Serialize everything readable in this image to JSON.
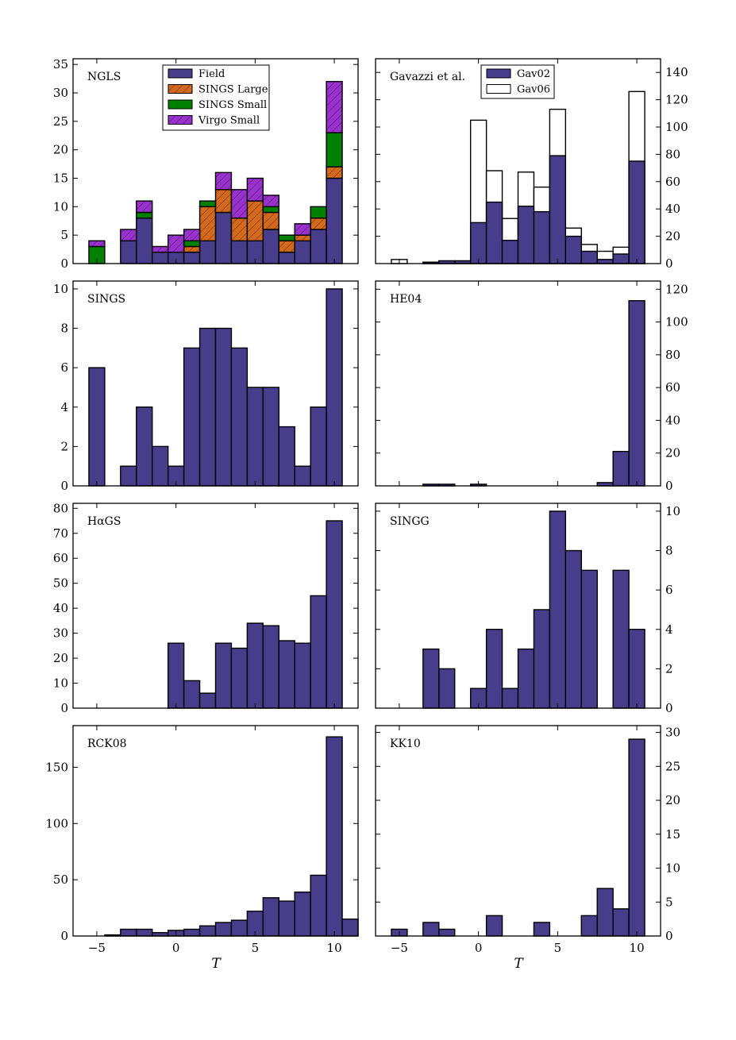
{
  "colors": {
    "field": "#483d8b",
    "sings_large": "#d2691e",
    "sings_small": "#008000",
    "virgo_small": "#9932cc",
    "gav06": "#ffffff",
    "edge": "#000000"
  },
  "x_axis_title": "T",
  "chart_data": [
    {
      "id": "ngls",
      "type": "bar",
      "stacked": true,
      "title": "NGLS",
      "xlim": [
        -6.5,
        11.5
      ],
      "ylim": [
        0,
        36
      ],
      "yticks": [
        0,
        5,
        10,
        15,
        20,
        25,
        30,
        35
      ],
      "yaxis_side": "left",
      "xticks": [
        -5,
        0,
        5,
        10
      ],
      "show_xticklabels": false,
      "bins": [
        -5,
        -4,
        -3,
        -2,
        -1,
        0,
        1,
        2,
        3,
        4,
        5,
        6,
        7,
        8,
        9,
        10
      ],
      "series": [
        {
          "name": "Field",
          "color_key": "field",
          "hatch": "",
          "values": [
            0,
            0,
            4,
            8,
            2,
            2,
            2,
            4,
            9,
            4,
            4,
            6,
            2,
            4,
            6,
            15
          ]
        },
        {
          "name": "SINGS Large",
          "color_key": "sings_large",
          "hatch": "hatch-orange",
          "values": [
            0,
            0,
            0,
            0,
            0,
            0,
            1,
            6,
            4,
            4,
            7,
            3,
            2,
            1,
            2,
            2
          ]
        },
        {
          "name": "SINGS Small",
          "color_key": "sings_small",
          "hatch": "",
          "values": [
            3,
            0,
            0,
            1,
            0,
            0,
            1,
            1,
            0,
            0,
            0,
            1,
            1,
            0,
            2,
            6
          ]
        },
        {
          "name": "Virgo Small",
          "color_key": "virgo_small",
          "hatch": "hatch-purple",
          "values": [
            1,
            0,
            2,
            2,
            1,
            3,
            2,
            0,
            3,
            5,
            4,
            2,
            0,
            2,
            0,
            9
          ]
        }
      ],
      "legend": [
        {
          "label": "Field",
          "color_key": "field",
          "hatch": ""
        },
        {
          "label": "SINGS Large",
          "color_key": "sings_large",
          "hatch": "hatch-orange"
        },
        {
          "label": "SINGS Small",
          "color_key": "sings_small",
          "hatch": ""
        },
        {
          "label": "Virgo Small",
          "color_key": "virgo_small",
          "hatch": "hatch-purple"
        }
      ],
      "legend_position": "top-center"
    },
    {
      "id": "gavazzi",
      "type": "bar",
      "stacked": false,
      "title": "Gavazzi et al.",
      "xlim": [
        -6.5,
        11.5
      ],
      "ylim": [
        0,
        150
      ],
      "yticks": [
        0,
        20,
        40,
        60,
        80,
        100,
        120,
        140
      ],
      "yaxis_side": "right",
      "xticks": [
        -5,
        0,
        5,
        10
      ],
      "show_xticklabels": false,
      "bins": [
        -5,
        -4,
        -3,
        -2,
        -1,
        0,
        1,
        2,
        3,
        4,
        5,
        6,
        7,
        8,
        9,
        10
      ],
      "series": [
        {
          "name": "Gav06",
          "color_key": "gav06",
          "hatch": "",
          "values": [
            3,
            0,
            1,
            2,
            2,
            105,
            68,
            33,
            67,
            56,
            113,
            26,
            14,
            9,
            12,
            126
          ]
        },
        {
          "name": "Gav02",
          "color_key": "field",
          "hatch": "",
          "values": [
            0,
            0,
            1,
            2,
            2,
            30,
            45,
            17,
            42,
            38,
            79,
            20,
            9,
            3,
            7,
            75
          ]
        }
      ],
      "legend": [
        {
          "label": "Gav02",
          "color_key": "field",
          "hatch": ""
        },
        {
          "label": "Gav06",
          "color_key": "gav06",
          "hatch": ""
        }
      ],
      "legend_position": "top-center"
    },
    {
      "id": "sings",
      "type": "bar",
      "stacked": false,
      "title": "SINGS",
      "xlim": [
        -6.5,
        11.5
      ],
      "ylim": [
        0,
        10.4
      ],
      "yticks": [
        0,
        2,
        4,
        6,
        8,
        10
      ],
      "yaxis_side": "left",
      "xticks": [
        -5,
        0,
        5,
        10
      ],
      "show_xticklabels": false,
      "bins": [
        -5,
        -4,
        -3,
        -2,
        -1,
        0,
        1,
        2,
        3,
        4,
        5,
        6,
        7,
        8,
        9,
        10
      ],
      "series": [
        {
          "name": "SINGS",
          "color_key": "field",
          "hatch": "",
          "values": [
            6,
            0,
            1,
            4,
            2,
            1,
            7,
            8,
            8,
            7,
            5,
            5,
            3,
            1,
            4,
            10
          ]
        }
      ]
    },
    {
      "id": "he04",
      "type": "bar",
      "stacked": false,
      "title": "HE04",
      "xlim": [
        -6.5,
        11.5
      ],
      "ylim": [
        0,
        125
      ],
      "yticks": [
        0,
        20,
        40,
        60,
        80,
        100,
        120
      ],
      "yaxis_side": "right",
      "xticks": [
        -5,
        0,
        5,
        10
      ],
      "show_xticklabels": false,
      "bins": [
        -5,
        -4,
        -3,
        -2,
        -1,
        0,
        1,
        2,
        3,
        4,
        5,
        6,
        7,
        8,
        9,
        10
      ],
      "series": [
        {
          "name": "HE04",
          "color_key": "field",
          "hatch": "",
          "values": [
            0,
            0,
            1,
            1,
            0,
            1,
            0,
            0,
            0,
            0,
            0,
            0,
            0,
            2,
            21,
            113
          ]
        }
      ]
    },
    {
      "id": "hags",
      "type": "bar",
      "stacked": false,
      "title": "HαGS",
      "xlim": [
        -6.5,
        11.5
      ],
      "ylim": [
        0,
        82
      ],
      "yticks": [
        0,
        10,
        20,
        30,
        40,
        50,
        60,
        70,
        80
      ],
      "yaxis_side": "left",
      "xticks": [
        -5,
        0,
        5,
        10
      ],
      "show_xticklabels": false,
      "bins": [
        -5,
        -4,
        -3,
        -2,
        -1,
        0,
        1,
        2,
        3,
        4,
        5,
        6,
        7,
        8,
        9,
        10
      ],
      "series": [
        {
          "name": "HαGS",
          "color_key": "field",
          "hatch": "",
          "values": [
            0,
            0,
            0,
            0,
            0,
            26,
            11,
            6,
            26,
            24,
            34,
            33,
            27,
            26,
            45,
            75
          ]
        }
      ]
    },
    {
      "id": "singg",
      "type": "bar",
      "stacked": false,
      "title": "SINGG",
      "xlim": [
        -6.5,
        11.5
      ],
      "ylim": [
        0,
        10.4
      ],
      "yticks": [
        0,
        2,
        4,
        6,
        8,
        10
      ],
      "yaxis_side": "right",
      "xticks": [
        -5,
        0,
        5,
        10
      ],
      "show_xticklabels": false,
      "bins": [
        -5,
        -4,
        -3,
        -2,
        -1,
        0,
        1,
        2,
        3,
        4,
        5,
        6,
        7,
        8,
        9,
        10
      ],
      "series": [
        {
          "name": "SINGG",
          "color_key": "field",
          "hatch": "",
          "values": [
            0,
            0,
            3,
            2,
            0,
            1,
            4,
            1,
            3,
            5,
            10,
            8,
            7,
            0,
            7,
            4
          ]
        }
      ]
    },
    {
      "id": "rck08",
      "type": "bar",
      "stacked": false,
      "title": "RCK08",
      "xlim": [
        -6.5,
        11.5
      ],
      "ylim": [
        0,
        187
      ],
      "yticks": [
        0,
        50,
        100,
        150
      ],
      "yaxis_side": "left",
      "xticks": [
        -5,
        0,
        5,
        10
      ],
      "show_xticklabels": true,
      "bins": [
        -5,
        -4,
        -3,
        -2,
        -1,
        0,
        1,
        2,
        3,
        4,
        5,
        6,
        7,
        8,
        9,
        10,
        11
      ],
      "series": [
        {
          "name": "RCK08",
          "color_key": "field",
          "hatch": "",
          "values": [
            0,
            1,
            6,
            6,
            3,
            5,
            6,
            9,
            12,
            14,
            22,
            34,
            31,
            39,
            54,
            177,
            15
          ]
        }
      ]
    },
    {
      "id": "kk10",
      "type": "bar",
      "stacked": false,
      "title": "KK10",
      "xlim": [
        -6.5,
        11.5
      ],
      "ylim": [
        0,
        31
      ],
      "yticks": [
        0,
        5,
        10,
        15,
        20,
        25,
        30
      ],
      "yaxis_side": "right",
      "xticks": [
        -5,
        0,
        5,
        10
      ],
      "show_xticklabels": true,
      "bins": [
        -5,
        -4,
        -3,
        -2,
        -1,
        0,
        1,
        2,
        3,
        4,
        5,
        6,
        7,
        8,
        9,
        10
      ],
      "series": [
        {
          "name": "KK10",
          "color_key": "field",
          "hatch": "",
          "values": [
            1,
            0,
            2,
            1,
            0,
            0,
            3,
            0,
            0,
            2,
            0,
            0,
            3,
            7,
            4,
            29
          ]
        }
      ]
    }
  ]
}
